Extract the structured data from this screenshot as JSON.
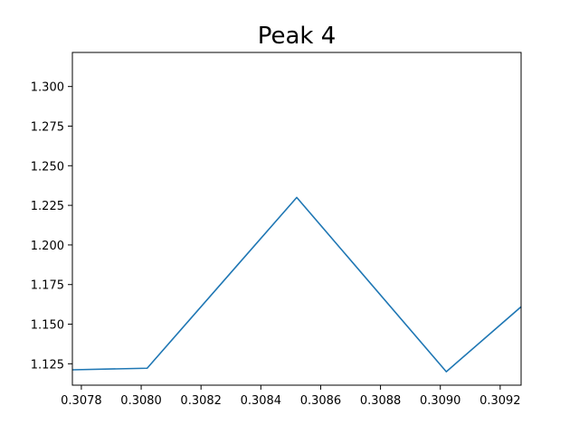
{
  "chart_data": {
    "type": "line",
    "title": "Peak 4",
    "xlabel": "",
    "ylabel": "",
    "xlim": [
      0.30777,
      0.30927
    ],
    "ylim": [
      1.1115,
      1.3215
    ],
    "x_ticks": [
      0.3078,
      0.308,
      0.3082,
      0.3084,
      0.3086,
      0.3088,
      0.309,
      0.3092
    ],
    "x_tick_labels": [
      "0.3078",
      "0.3080",
      "0.3082",
      "0.3084",
      "0.3086",
      "0.3088",
      "0.3090",
      "0.3092"
    ],
    "y_ticks": [
      1.125,
      1.15,
      1.175,
      1.2,
      1.225,
      1.25,
      1.275,
      1.3
    ],
    "y_tick_labels": [
      "1.125",
      "1.150",
      "1.175",
      "1.200",
      "1.225",
      "1.250",
      "1.275",
      "1.300"
    ],
    "grid": false,
    "series": [
      {
        "color": "#1f77b4",
        "x": [
          0.30777,
          0.30802,
          0.30852,
          0.30902,
          0.30927
        ],
        "y": [
          1.1212,
          1.1222,
          1.23,
          1.12,
          1.161
        ]
      }
    ]
  }
}
